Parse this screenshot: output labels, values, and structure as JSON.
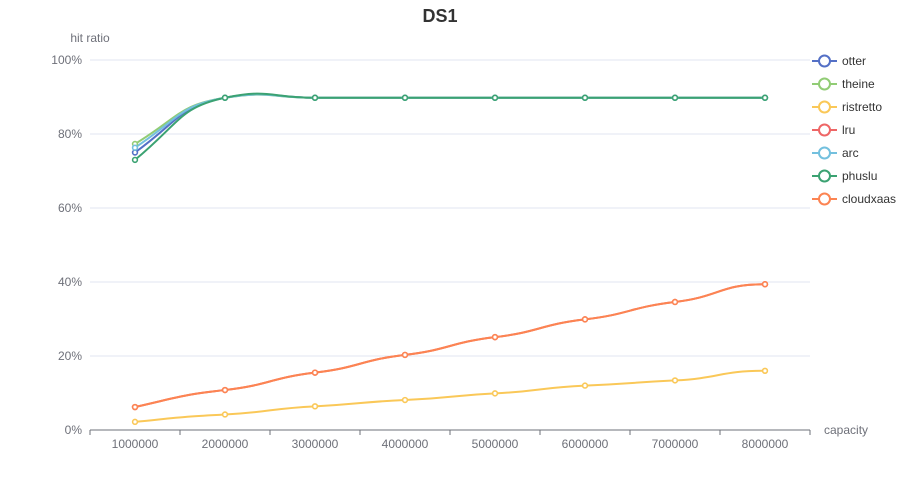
{
  "chart_data": {
    "type": "line",
    "title": "DS1",
    "xlabel": "capacity",
    "ylabel": "hit ratio",
    "categories": [
      "1000000",
      "2000000",
      "3000000",
      "4000000",
      "5000000",
      "6000000",
      "7000000",
      "8000000"
    ],
    "ylim": [
      0,
      100
    ],
    "yticks": [
      0,
      20,
      40,
      60,
      80,
      100
    ],
    "ytick_labels": [
      "0%",
      "20%",
      "40%",
      "60%",
      "80%",
      "100%"
    ],
    "legend_position": "top-right",
    "grid": true,
    "series": [
      {
        "name": "otter",
        "color": "#5470c6",
        "smooth": true,
        "values": [
          75.0,
          89.8,
          89.8,
          89.8,
          89.8,
          89.8,
          89.8,
          89.8
        ]
      },
      {
        "name": "theine",
        "color": "#91cc75",
        "smooth": true,
        "values": [
          77.3,
          89.8,
          89.8,
          89.8,
          89.8,
          89.8,
          89.8,
          89.8
        ]
      },
      {
        "name": "ristretto",
        "color": "#fac858",
        "smooth": true,
        "values": [
          2.2,
          4.2,
          6.4,
          8.1,
          9.9,
          12.0,
          13.4,
          16.0
        ]
      },
      {
        "name": "lru",
        "color": "#ee6666",
        "smooth": true,
        "values": [
          6.2,
          10.8,
          15.5,
          20.3,
          25.1,
          29.9,
          34.6,
          39.4
        ]
      },
      {
        "name": "arc",
        "color": "#73c0de",
        "smooth": true,
        "values": [
          76.3,
          89.8,
          89.8,
          89.8,
          89.8,
          89.8,
          89.8,
          89.8
        ]
      },
      {
        "name": "phuslu",
        "color": "#3ba272",
        "smooth": true,
        "values": [
          73.0,
          89.8,
          89.8,
          89.8,
          89.8,
          89.8,
          89.8,
          89.8
        ]
      },
      {
        "name": "cloudxaas",
        "color": "#fc8452",
        "smooth": true,
        "values": [
          6.2,
          10.8,
          15.5,
          20.3,
          25.1,
          29.9,
          34.6,
          39.4
        ]
      }
    ]
  }
}
